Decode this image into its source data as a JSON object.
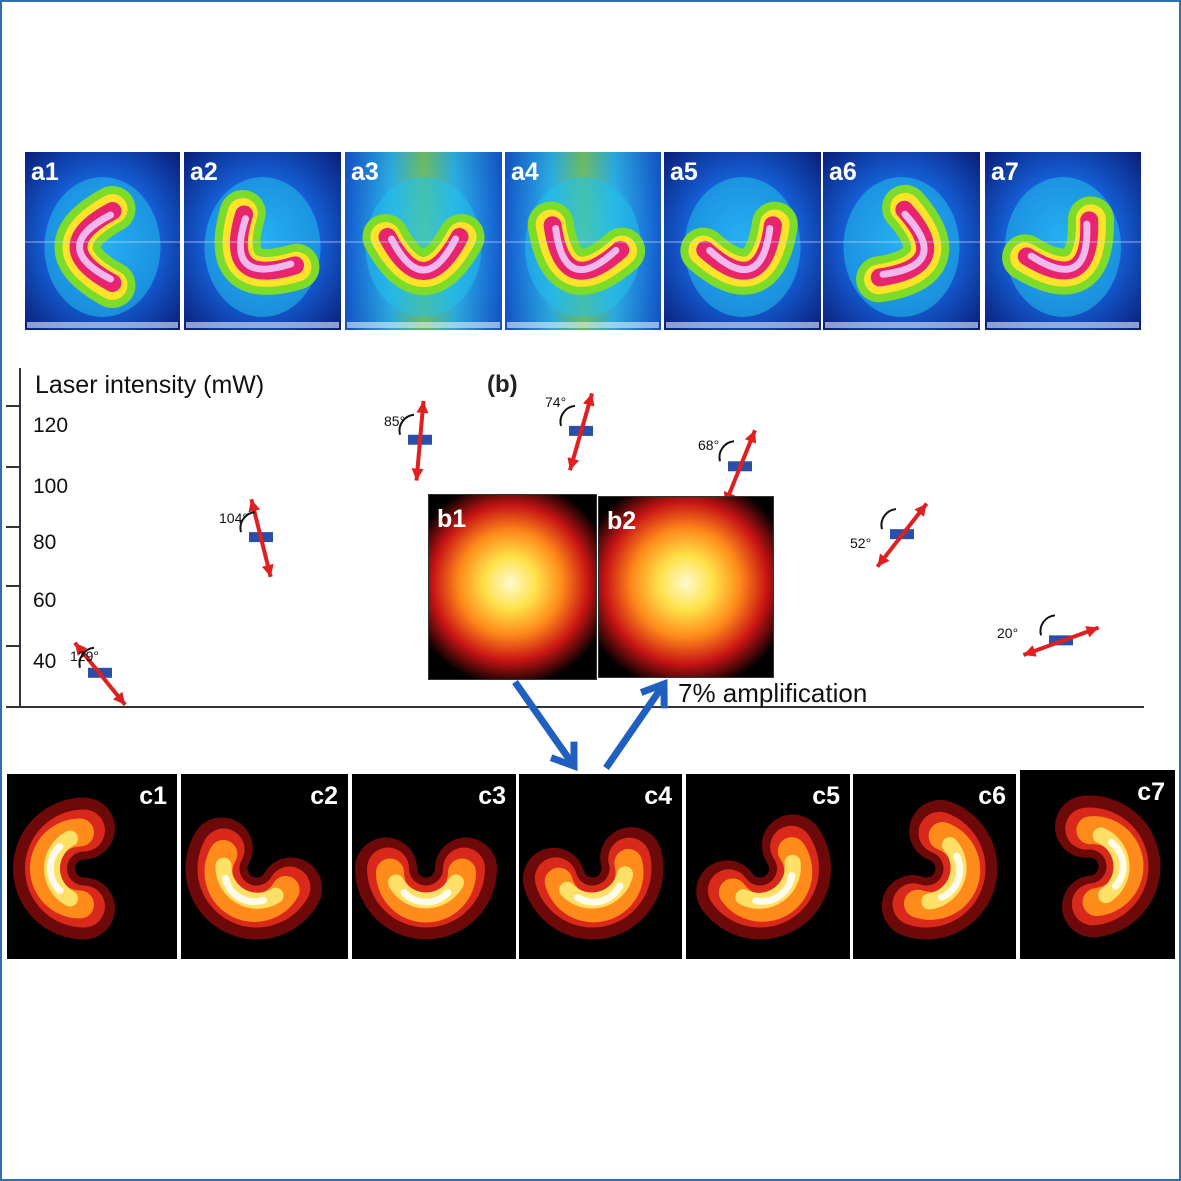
{
  "figure": {
    "a_panels": [
      "a1",
      "a2",
      "a3",
      "a4",
      "a5",
      "a6",
      "a7"
    ],
    "b_marker": "(b)",
    "b_panels": [
      "b1",
      "b2"
    ],
    "c_panels": [
      "c1",
      "c2",
      "c3",
      "c4",
      "c5",
      "c6",
      "c7"
    ],
    "amplification_label": "7% amplification"
  },
  "chart_data": {
    "type": "scatter",
    "ylabel": "Laser intensity (mW)",
    "yticks": [
      "120",
      "100",
      "80",
      "60",
      "40"
    ],
    "points": [
      {
        "angle": "129°",
        "y": 36
      },
      {
        "angle": "104°",
        "y": 82
      },
      {
        "angle": "85°",
        "y": 115
      },
      {
        "angle": "74°",
        "y": 118
      },
      {
        "angle": "68°",
        "y": 106
      },
      {
        "angle": "52°",
        "y": 83
      },
      {
        "angle": "20°",
        "y": 47
      }
    ],
    "grid": false
  },
  "colors": {
    "frame": "#2d6fb0",
    "arrow_red": "#e02020",
    "arrow_blue": "#1f5fbf",
    "bar_blue": "#2b4fa8"
  }
}
